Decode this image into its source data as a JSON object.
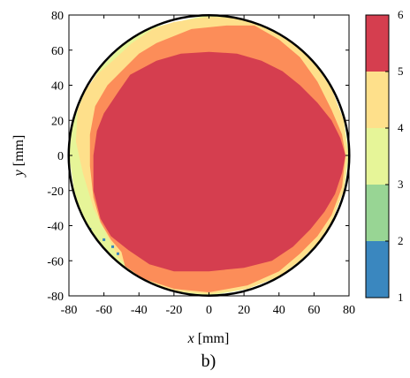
{
  "chart_data": {
    "type": "heatmap",
    "title": "",
    "xlabel": {
      "var": "x",
      "unit": "[mm]"
    },
    "ylabel": {
      "var": "y",
      "unit": "[mm]"
    },
    "xlim": [
      -80,
      80
    ],
    "ylim": [
      -80,
      80
    ],
    "xticks": [
      "-80",
      "-60",
      "-40",
      "-20",
      "0",
      "20",
      "40",
      "60",
      "80"
    ],
    "yticks": [
      "80",
      "60",
      "40",
      "20",
      "0",
      "-20",
      "-40",
      "-60",
      "-80"
    ],
    "boundary_circle_radius_mm": 80,
    "colorbar": {
      "range": [
        1,
        6
      ],
      "ticks": [
        "1",
        "2",
        "3",
        "4",
        "5",
        "6"
      ],
      "levels": [
        {
          "range": [
            1,
            2
          ],
          "color": "#3a87bf"
        },
        {
          "range": [
            2,
            3
          ],
          "color": "#98d594"
        },
        {
          "range": [
            3,
            4
          ],
          "color": "#e6f598"
        },
        {
          "range": [
            4,
            5
          ],
          "color": "#fee08b"
        },
        {
          "range": [
            5,
            6
          ],
          "color": "#fc8d59"
        },
        {
          "range": [
            6,
            6
          ],
          "color": "#d53e4f"
        }
      ]
    },
    "regions": [
      {
        "level": 3,
        "color": "#e6f598",
        "polygon": [
          [
            -36,
            72
          ],
          [
            -10,
            78
          ],
          [
            0,
            80
          ],
          [
            20,
            78
          ],
          [
            36,
            71
          ],
          [
            48,
            64
          ],
          [
            60,
            53
          ],
          [
            70,
            38
          ],
          [
            77,
            20
          ],
          [
            80,
            0
          ],
          [
            77,
            -20
          ],
          [
            70,
            -38
          ],
          [
            62,
            -50
          ],
          [
            52,
            -60
          ],
          [
            40,
            -69
          ],
          [
            22,
            -76
          ],
          [
            0,
            -80
          ],
          [
            -22,
            -77
          ],
          [
            -40,
            -69
          ],
          [
            -50,
            -63
          ],
          [
            -60,
            -53
          ],
          [
            -67,
            -44
          ],
          [
            -73,
            -33
          ],
          [
            -77,
            -20
          ],
          [
            -80,
            0
          ],
          [
            -78,
            18
          ],
          [
            -72,
            34
          ],
          [
            -62,
            50
          ],
          [
            -50,
            62
          ]
        ]
      },
      {
        "level": 4,
        "color": "#fee08b",
        "polygon": [
          [
            -20,
            76
          ],
          [
            0,
            79
          ],
          [
            20,
            78
          ],
          [
            36,
            71
          ],
          [
            48,
            64
          ],
          [
            60,
            53
          ],
          [
            70,
            38
          ],
          [
            77,
            20
          ],
          [
            79,
            0
          ],
          [
            77,
            -20
          ],
          [
            70,
            -38
          ],
          [
            62,
            -50
          ],
          [
            52,
            -60
          ],
          [
            40,
            -69
          ],
          [
            22,
            -76
          ],
          [
            0,
            -79
          ],
          [
            -22,
            -77
          ],
          [
            -40,
            -69
          ],
          [
            -52,
            -58
          ],
          [
            -58,
            -46
          ],
          [
            -66,
            -30
          ],
          [
            -72,
            -10
          ],
          [
            -76,
            8
          ],
          [
            -75,
            26
          ],
          [
            -70,
            38
          ],
          [
            -64,
            46
          ],
          [
            -55,
            54
          ],
          [
            -44,
            64
          ],
          [
            -32,
            72
          ]
        ]
      },
      {
        "level": 5,
        "color": "#fc8d59",
        "polygon": [
          [
            -30,
            64
          ],
          [
            -10,
            72
          ],
          [
            10,
            74
          ],
          [
            26,
            74
          ],
          [
            40,
            66
          ],
          [
            52,
            56
          ],
          [
            62,
            42
          ],
          [
            70,
            26
          ],
          [
            76,
            12
          ],
          [
            78,
            0
          ],
          [
            76,
            -18
          ],
          [
            70,
            -34
          ],
          [
            62,
            -46
          ],
          [
            52,
            -56
          ],
          [
            40,
            -66
          ],
          [
            22,
            -74
          ],
          [
            0,
            -78
          ],
          [
            -20,
            -76
          ],
          [
            -38,
            -70
          ],
          [
            -48,
            -63
          ],
          [
            -50,
            -55
          ],
          [
            -56,
            -48
          ],
          [
            -62,
            -38
          ],
          [
            -66,
            -24
          ],
          [
            -68,
            -6
          ],
          [
            -68,
            12
          ],
          [
            -65,
            28
          ],
          [
            -58,
            40
          ],
          [
            -48,
            50
          ],
          [
            -40,
            58
          ]
        ]
      },
      {
        "level": 6,
        "color": "#d53e4f",
        "polygon": [
          [
            -45,
            46
          ],
          [
            -30,
            54
          ],
          [
            -16,
            58
          ],
          [
            0,
            59
          ],
          [
            16,
            58
          ],
          [
            30,
            54
          ],
          [
            42,
            48
          ],
          [
            52,
            40
          ],
          [
            62,
            30
          ],
          [
            70,
            20
          ],
          [
            75,
            10
          ],
          [
            78,
            0
          ],
          [
            76,
            -10
          ],
          [
            72,
            -22
          ],
          [
            66,
            -32
          ],
          [
            58,
            -42
          ],
          [
            48,
            -52
          ],
          [
            36,
            -60
          ],
          [
            20,
            -64
          ],
          [
            0,
            -66
          ],
          [
            -20,
            -66
          ],
          [
            -34,
            -62
          ],
          [
            -46,
            -54
          ],
          [
            -56,
            -46
          ],
          [
            -62,
            -36
          ],
          [
            -66,
            -20
          ],
          [
            -66,
            0
          ],
          [
            -64,
            14
          ],
          [
            -60,
            24
          ],
          [
            -52,
            36
          ]
        ]
      }
    ],
    "low_value_specks": {
      "level": 1,
      "color": "#3a87bf",
      "points": [
        [
          -74,
          -32
        ],
        [
          -72,
          -36
        ],
        [
          -70,
          -40
        ],
        [
          -68,
          -42
        ],
        [
          -60,
          -48
        ],
        [
          -52,
          -56
        ],
        [
          -55,
          -52
        ]
      ]
    }
  },
  "caption": "b)"
}
